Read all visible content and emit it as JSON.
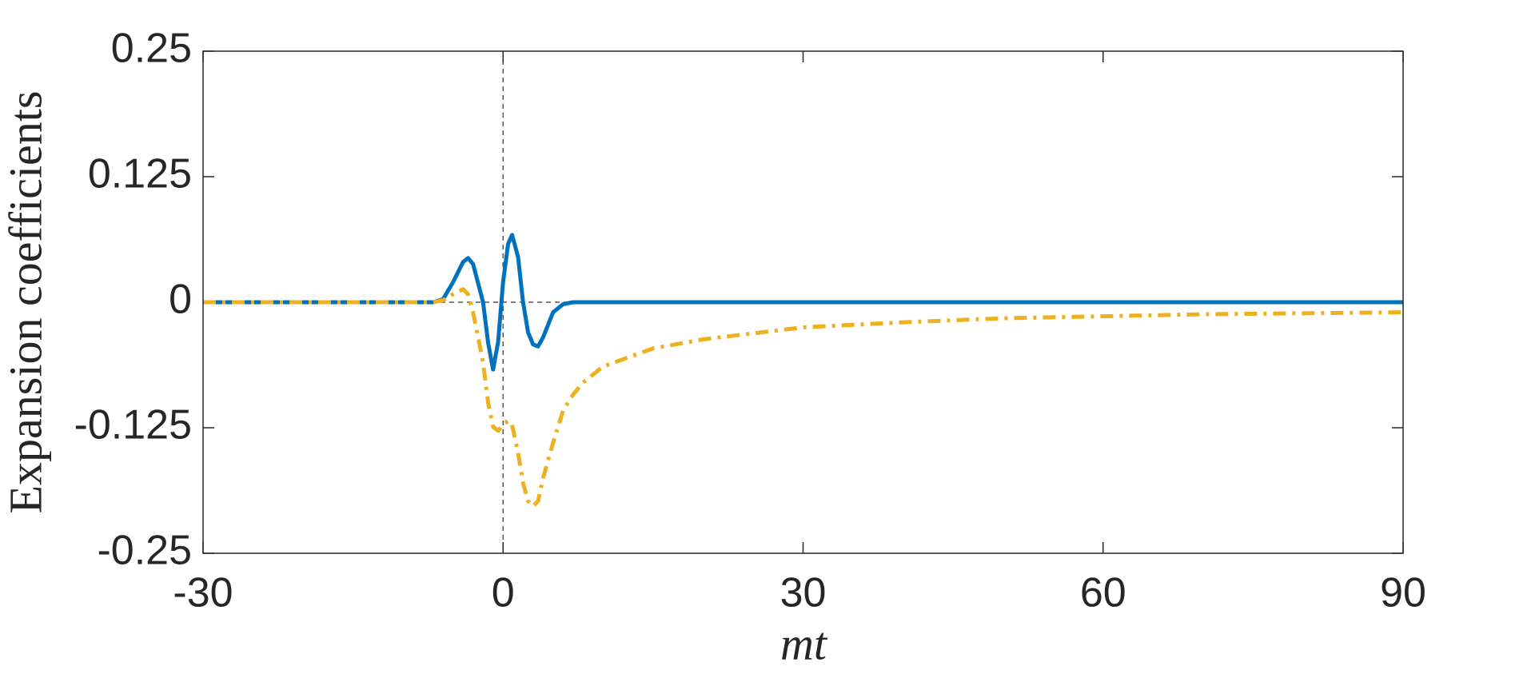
{
  "chart_data": {
    "type": "line",
    "ylabel": "Expansion coefficients",
    "xlabel": "mt",
    "x": [
      -30,
      -10,
      -7,
      -6,
      -5,
      -4,
      -3.5,
      -3,
      -2,
      -1.5,
      -1,
      -0.5,
      0,
      0.5,
      0.9,
      1.5,
      2,
      2.5,
      3,
      3.5,
      4,
      5,
      6,
      7,
      8,
      10,
      15,
      20,
      30,
      40,
      50,
      60,
      70,
      80,
      90
    ],
    "series": [
      {
        "color": "#0072BD",
        "style": "solid",
        "values": [
          0,
          0,
          0,
          0.003,
          0.02,
          0.04,
          0.044,
          0.038,
          0,
          -0.04,
          -0.067,
          -0.04,
          0.02,
          0.058,
          0.067,
          0.045,
          0,
          -0.03,
          -0.042,
          -0.044,
          -0.035,
          -0.01,
          -0.002,
          0,
          0,
          0,
          0,
          0,
          0,
          0,
          0,
          0,
          0,
          0,
          0
        ]
      },
      {
        "color": "#EDB120",
        "style": "dashdot",
        "values": [
          0,
          0,
          0,
          0.002,
          0.008,
          0.013,
          0.008,
          -0.01,
          -0.06,
          -0.1,
          -0.124,
          -0.128,
          -0.122,
          -0.118,
          -0.122,
          -0.15,
          -0.18,
          -0.198,
          -0.203,
          -0.198,
          -0.175,
          -0.14,
          -0.108,
          -0.092,
          -0.08,
          -0.064,
          -0.046,
          -0.037,
          -0.025,
          -0.02,
          -0.016,
          -0.014,
          -0.012,
          -0.011,
          -0.01
        ]
      }
    ],
    "xlim": [
      -30,
      90
    ],
    "xticks": [
      -30,
      0,
      30,
      60,
      90
    ],
    "ylim": [
      -0.25,
      0.25
    ],
    "yticks": [
      -0.25,
      -0.125,
      0,
      0.125,
      0.25
    ],
    "grid": false
  }
}
